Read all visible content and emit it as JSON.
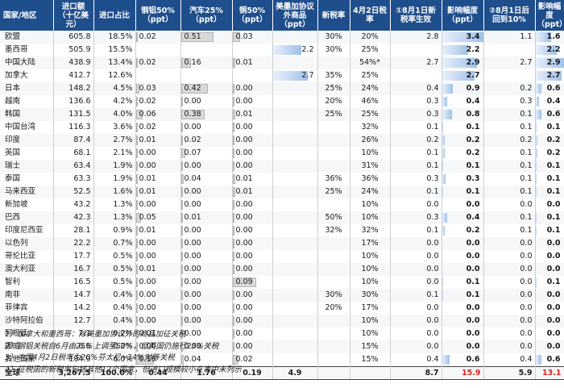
{
  "headers": {
    "country": "国家/地区",
    "imports": "进口额（十亿美元）",
    "share": "进口占比",
    "steel_al": "钢铝50%（ppt）",
    "auto": "汽车25%（ppt）",
    "copper": "铜50%（ppt）",
    "usmca": "美墨加协议外商品（ppt）",
    "new_rate": "新税率",
    "apr2": "4月2日税率",
    "aug1_new": "①8月1日新税率生效",
    "impact1": "影响幅度（ppt）",
    "aug1_back": "②8月1日后回到10%",
    "impact2": "影响幅度（ppt）"
  },
  "rows": [
    {
      "country": "欧盟",
      "imports": "605.8",
      "share": "18.5%",
      "steel": "0.02",
      "auto": "0.51",
      "copper": "0.03",
      "usmca": "",
      "new_rate": "30%",
      "apr2": "20%",
      "aug1_new": "2.8",
      "impact1": "3.4",
      "aug1_back": "1.1",
      "impact2": "1.6"
    },
    {
      "country": "墨西哥",
      "imports": "505.9",
      "share": "15.5%",
      "steel": "",
      "auto": "",
      "copper": "",
      "usmca": "2.2",
      "new_rate": "30%",
      "apr2": "25%",
      "aug1_new": "",
      "impact1": "2.2",
      "aug1_back": "",
      "impact2": "2.2"
    },
    {
      "country": "中国大陆",
      "imports": "438.9",
      "share": "13.4%",
      "steel": "0.02",
      "auto": "0.16",
      "copper": "0.01",
      "usmca": "",
      "new_rate": "",
      "apr2": "54%*",
      "aug1_new": "2.7",
      "impact1": "2.9",
      "aug1_back": "2.7",
      "impact2": "2.9"
    },
    {
      "country": "加拿大",
      "imports": "412.7",
      "share": "12.6%",
      "steel": "",
      "auto": "",
      "copper": "",
      "usmca": "2.7",
      "new_rate": "35%",
      "apr2": "25%",
      "aug1_new": "",
      "impact1": "2.7",
      "aug1_back": "",
      "impact2": "2.7"
    },
    {
      "country": "日本",
      "imports": "148.2",
      "share": "4.5%",
      "steel": "0.03",
      "auto": "0.42",
      "copper": "0.00",
      "usmca": "",
      "new_rate": "25%",
      "apr2": "24%",
      "aug1_new": "0.4",
      "impact1": "0.9",
      "aug1_back": "0.2",
      "impact2": "0.6"
    },
    {
      "country": "越南",
      "imports": "136.6",
      "share": "4.2%",
      "steel": "0.02",
      "auto": "0.00",
      "copper": "0.00",
      "usmca": "",
      "new_rate": "20%",
      "apr2": "46%",
      "aug1_new": "0.3",
      "impact1": "0.4",
      "aug1_back": "0.3",
      "impact2": "0.4"
    },
    {
      "country": "韩国",
      "imports": "131.5",
      "share": "4.0%",
      "steel": "0.06",
      "auto": "0.38",
      "copper": "0.01",
      "usmca": "",
      "new_rate": "25%",
      "apr2": "25%",
      "aug1_new": "0.3",
      "impact1": "0.8",
      "aug1_back": "0.1",
      "impact2": "0.6"
    },
    {
      "country": "中国台湾",
      "imports": "116.3",
      "share": "3.6%",
      "steel": "0.02",
      "auto": "0.00",
      "copper": "0.00",
      "usmca": "",
      "new_rate": "",
      "apr2": "32%",
      "aug1_new": "0.1",
      "impact1": "0.1",
      "aug1_back": "0.1",
      "impact2": "0.1"
    },
    {
      "country": "印度",
      "imports": "87.4",
      "share": "2.7%",
      "steel": "0.01",
      "auto": "0.02",
      "copper": "0.00",
      "usmca": "",
      "new_rate": "",
      "apr2": "26%",
      "aug1_new": "0.2",
      "impact1": "0.2",
      "aug1_back": "0.2",
      "impact2": "0.2"
    },
    {
      "country": "英国",
      "imports": "68.1",
      "share": "2.1%",
      "steel": "0.00",
      "auto": "0.07",
      "copper": "0.00",
      "usmca": "",
      "new_rate": "",
      "apr2": "10%",
      "aug1_new": "0.1",
      "impact1": "0.2",
      "aug1_back": "0.1",
      "impact2": "0.2"
    },
    {
      "country": "瑞士",
      "imports": "63.4",
      "share": "1.9%",
      "steel": "0.00",
      "auto": "0.00",
      "copper": "0.00",
      "usmca": "",
      "new_rate": "",
      "apr2": "31%",
      "aug1_new": "0.1",
      "impact1": "0.1",
      "aug1_back": "0.1",
      "impact2": "0.1"
    },
    {
      "country": "泰国",
      "imports": "63.3",
      "share": "1.9%",
      "steel": "0.01",
      "auto": "0.04",
      "copper": "0.01",
      "usmca": "",
      "new_rate": "36%",
      "apr2": "36%",
      "aug1_new": "0.3",
      "impact1": "0.3",
      "aug1_back": "0.1",
      "impact2": "0.1"
    },
    {
      "country": "马来西亚",
      "imports": "52.5",
      "share": "1.6%",
      "steel": "0.01",
      "auto": "0.00",
      "copper": "0.01",
      "usmca": "",
      "new_rate": "25%",
      "apr2": "24%",
      "aug1_new": "0.1",
      "impact1": "0.1",
      "aug1_back": "0.1",
      "impact2": "0.1"
    },
    {
      "country": "新加坡",
      "imports": "43.2",
      "share": "1.3%",
      "steel": "0.00",
      "auto": "0.00",
      "copper": "0.00",
      "usmca": "",
      "new_rate": "",
      "apr2": "10%",
      "aug1_new": "0.0",
      "impact1": "0.0",
      "aug1_back": "0.0",
      "impact2": "0.0"
    },
    {
      "country": "巴西",
      "imports": "42.3",
      "share": "1.3%",
      "steel": "0.05",
      "auto": "0.01",
      "copper": "0.00",
      "usmca": "",
      "new_rate": "50%",
      "apr2": "10%",
      "aug1_new": "0.3",
      "impact1": "0.4",
      "aug1_back": "0.1",
      "impact2": "0.1"
    },
    {
      "country": "印度尼西亚",
      "imports": "28.1",
      "share": "0.9%",
      "steel": "0.01",
      "auto": "0.00",
      "copper": "0.00",
      "usmca": "",
      "new_rate": "32%",
      "apr2": "32%",
      "aug1_new": "0.1",
      "impact1": "0.2",
      "aug1_back": "0.1",
      "impact2": "0.1"
    },
    {
      "country": "以色列",
      "imports": "22.2",
      "share": "0.7%",
      "steel": "0.00",
      "auto": "0.00",
      "copper": "0.00",
      "usmca": "",
      "new_rate": "",
      "apr2": "17%",
      "aug1_new": "0.0",
      "impact1": "0.0",
      "aug1_back": "0.0",
      "impact2": "0.0"
    },
    {
      "country": "哥伦比亚",
      "imports": "17.7",
      "share": "0.5%",
      "steel": "0.00",
      "auto": "0.00",
      "copper": "0.00",
      "usmca": "",
      "new_rate": "",
      "apr2": "10%",
      "aug1_new": "0.0",
      "impact1": "0.0",
      "aug1_back": "0.0",
      "impact2": "0.0"
    },
    {
      "country": "澳大利亚",
      "imports": "16.7",
      "share": "0.5%",
      "steel": "0.01",
      "auto": "0.00",
      "copper": "0.00",
      "usmca": "",
      "new_rate": "",
      "apr2": "10%",
      "aug1_new": "0.0",
      "impact1": "0.0",
      "aug1_back": "0.0",
      "impact2": "0.0"
    },
    {
      "country": "智利",
      "imports": "16.5",
      "share": "0.5%",
      "steel": "0.00",
      "auto": "0.00",
      "copper": "0.09",
      "usmca": "",
      "new_rate": "",
      "apr2": "10%",
      "aug1_new": "0.0",
      "impact1": "0.1",
      "aug1_back": "0.0",
      "impact2": "0.1"
    },
    {
      "country": "南非",
      "imports": "14.7",
      "share": "0.4%",
      "steel": "0.00",
      "auto": "0.00",
      "copper": "0.00",
      "usmca": "",
      "new_rate": "30%",
      "apr2": "30%",
      "aug1_new": "0.1",
      "impact1": "0.1",
      "aug1_back": "0.0",
      "impact2": "0.0"
    },
    {
      "country": "菲律宾",
      "imports": "14.2",
      "share": "0.4%",
      "steel": "0.00",
      "auto": "0.00",
      "copper": "0.00",
      "usmca": "",
      "new_rate": "20%",
      "apr2": "17%",
      "aug1_new": "0.0",
      "impact1": "0.0",
      "aug1_back": "0.0",
      "impact2": "0.0"
    },
    {
      "country": "沙特阿拉伯",
      "imports": "12.7",
      "share": "0.4%",
      "steel": "0.00",
      "auto": "0.00",
      "copper": "0.00",
      "usmca": "",
      "new_rate": "",
      "apr2": "10%",
      "aug1_new": "0.0",
      "impact1": "0.0",
      "aug1_back": "0.0",
      "impact2": "0.0"
    },
    {
      "country": "阿根廷",
      "imports": "7.1",
      "share": "0.2%",
      "steel": "0.01",
      "auto": "0.00",
      "copper": "0.00",
      "usmca": "",
      "new_rate": "",
      "apr2": "10%",
      "aug1_new": "0.0",
      "impact1": "0.0",
      "aug1_back": "0.0",
      "impact2": "0.0"
    },
    {
      "country": "挪威",
      "imports": "6.6",
      "share": "0.2%",
      "steel": "0.00",
      "auto": "0.00",
      "copper": "0.00",
      "usmca": "",
      "new_rate": "",
      "apr2": "15%",
      "aug1_new": "0.0",
      "impact1": "0.0",
      "aug1_back": "0.0",
      "impact2": "0.0"
    },
    {
      "country": "其他国家",
      "imports": "194.9",
      "share": "6.0%",
      "steel": "0.16",
      "auto": "0.04",
      "copper": "0.02",
      "usmca": "",
      "new_rate": "",
      "apr2": "15%",
      "aug1_new": "0.4",
      "impact1": "0.6",
      "aug1_back": "0.4",
      "impact2": "0.6"
    }
  ],
  "total": {
    "country": "全球",
    "imports": "3,267.5",
    "share": "100.0%",
    "steel": "0.44",
    "auto": "1.76",
    "copper": "0.19",
    "usmca": "4.9",
    "new_rate": "",
    "apr2": "",
    "aug1_new": "8.7",
    "impact1": "15.9",
    "aug1_back": "5.9",
    "impact2": "13.1"
  },
  "notes": [
    "1）加拿大和墨西哥：除美墨加协议外的商品加征关税",
    "2）钢铝关税自6月由25%上调至50%，但英国仍施行25%关税",
    "3）中国4月2日税率为20%芬太尼+34%对等关税",
    "4）征税函的新税率包括其他12个国家，但进口规模较小在表中未列示"
  ],
  "colors": {
    "header_bg": "#1f4e8c",
    "gray_bar": "#d9d9d9",
    "blue_bar": "#9fc1ea",
    "red_total": "#e02020"
  }
}
